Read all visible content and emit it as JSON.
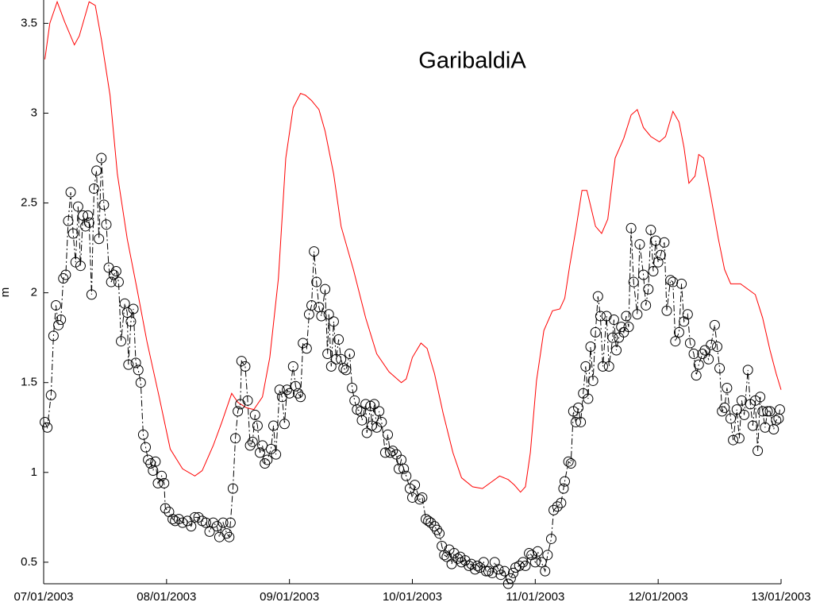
{
  "chart_data": {
    "type": "line",
    "title": "GaribaldiA",
    "y_label": "m",
    "xlim": [
      0,
      6
    ],
    "ylim": [
      0.38,
      3.63
    ],
    "xticks": [
      {
        "value": 0,
        "label": "07/01/2003"
      },
      {
        "value": 1,
        "label": "08/01/2003"
      },
      {
        "value": 2,
        "label": "09/01/2003"
      },
      {
        "value": 3,
        "label": "10/01/2003"
      },
      {
        "value": 4,
        "label": "11/01/2003"
      },
      {
        "value": 5,
        "label": "12/01/2003"
      },
      {
        "value": 6,
        "label": "13/01/2003"
      }
    ],
    "yticks": [
      0.5,
      1,
      1.5,
      2,
      2.5,
      3,
      3.5
    ],
    "grid": false,
    "series": [
      {
        "color": "#ff0000",
        "linestyle": "solid",
        "marker": "none",
        "x": [
          0.01,
          0.05,
          0.11,
          0.17,
          0.25,
          0.29,
          0.37,
          0.42,
          0.47,
          0.54,
          0.6,
          0.68,
          0.76,
          0.84,
          0.94,
          1.03,
          1.13,
          1.23,
          1.29,
          1.38,
          1.45,
          1.53,
          1.58,
          1.65,
          1.71,
          1.78,
          1.84,
          1.91,
          1.97,
          2.03,
          2.09,
          2.13,
          2.18,
          2.24,
          2.29,
          2.36,
          2.42,
          2.52,
          2.62,
          2.71,
          2.81,
          2.91,
          2.95,
          3.0,
          3.07,
          3.12,
          3.18,
          3.25,
          3.33,
          3.4,
          3.49,
          3.57,
          3.65,
          3.71,
          3.78,
          3.83,
          3.88,
          3.92,
          3.96,
          4.01,
          4.07,
          4.14,
          4.2,
          4.24,
          4.28,
          4.33,
          4.38,
          4.42,
          4.49,
          4.54,
          4.59,
          4.65,
          4.72,
          4.78,
          4.83,
          4.88,
          4.94,
          5.01,
          5.06,
          5.12,
          5.17,
          5.21,
          5.25,
          5.3,
          5.33,
          5.37,
          5.43,
          5.49,
          5.54,
          5.59,
          5.67,
          5.73,
          5.79,
          5.85,
          5.91,
          5.96,
          6.0
        ],
        "values": [
          3.3,
          3.5,
          3.62,
          3.51,
          3.38,
          3.43,
          3.62,
          3.6,
          3.41,
          3.1,
          2.66,
          2.3,
          2.02,
          1.73,
          1.42,
          1.13,
          1.02,
          0.98,
          1.01,
          1.15,
          1.28,
          1.44,
          1.39,
          1.36,
          1.35,
          1.42,
          1.64,
          2.08,
          2.75,
          3.03,
          3.11,
          3.1,
          3.07,
          3.02,
          2.9,
          2.66,
          2.37,
          2.13,
          1.86,
          1.66,
          1.56,
          1.5,
          1.52,
          1.64,
          1.72,
          1.69,
          1.55,
          1.33,
          1.11,
          0.97,
          0.92,
          0.91,
          0.95,
          0.98,
          0.96,
          0.93,
          0.89,
          0.92,
          1.11,
          1.51,
          1.79,
          1.9,
          1.91,
          1.97,
          2.15,
          2.35,
          2.57,
          2.57,
          2.37,
          2.33,
          2.41,
          2.75,
          2.86,
          2.99,
          3.02,
          2.92,
          2.87,
          2.84,
          2.87,
          3.01,
          2.95,
          2.81,
          2.61,
          2.65,
          2.77,
          2.75,
          2.53,
          2.3,
          2.13,
          2.05,
          2.05,
          2.02,
          1.99,
          1.86,
          1.68,
          1.55,
          1.46
        ]
      },
      {
        "color": "#000000",
        "linestyle": "dashdot",
        "marker": "circle",
        "x": [
          0.01,
          0.03,
          0.06,
          0.08,
          0.1,
          0.12,
          0.14,
          0.16,
          0.18,
          0.2,
          0.22,
          0.24,
          0.26,
          0.28,
          0.3,
          0.32,
          0.34,
          0.36,
          0.37,
          0.39,
          0.41,
          0.43,
          0.45,
          0.47,
          0.49,
          0.51,
          0.53,
          0.55,
          0.57,
          0.59,
          0.61,
          0.63,
          0.66,
          0.68,
          0.69,
          0.71,
          0.73,
          0.75,
          0.77,
          0.79,
          0.81,
          0.83,
          0.85,
          0.87,
          0.89,
          0.91,
          0.93,
          0.96,
          0.98,
          0.99,
          1.02,
          1.05,
          1.07,
          1.1,
          1.13,
          1.17,
          1.2,
          1.23,
          1.26,
          1.29,
          1.32,
          1.35,
          1.38,
          1.41,
          1.43,
          1.46,
          1.49,
          1.51,
          1.52,
          1.54,
          1.56,
          1.58,
          1.6,
          1.61,
          1.64,
          1.66,
          1.68,
          1.7,
          1.72,
          1.74,
          1.76,
          1.78,
          1.8,
          1.82,
          1.85,
          1.87,
          1.89,
          1.92,
          1.94,
          1.96,
          1.98,
          2.0,
          2.03,
          2.05,
          2.07,
          2.09,
          2.11,
          2.14,
          2.16,
          2.18,
          2.2,
          2.22,
          2.24,
          2.26,
          2.29,
          2.31,
          2.32,
          2.34,
          2.36,
          2.38,
          2.4,
          2.42,
          2.44,
          2.46,
          2.49,
          2.51,
          2.53,
          2.55,
          2.58,
          2.59,
          2.62,
          2.63,
          2.66,
          2.67,
          2.69,
          2.71,
          2.73,
          2.75,
          2.78,
          2.8,
          2.82,
          2.84,
          2.87,
          2.89,
          2.91,
          2.93,
          2.95,
          2.98,
          3.0,
          3.02,
          3.06,
          3.08,
          3.11,
          3.13,
          3.15,
          3.18,
          3.2,
          3.22,
          3.24,
          3.26,
          3.28,
          3.3,
          3.32,
          3.34,
          3.37,
          3.39,
          3.4,
          3.43,
          3.46,
          3.48,
          3.51,
          3.53,
          3.55,
          3.58,
          3.6,
          3.62,
          3.65,
          3.67,
          3.7,
          3.72,
          3.75,
          3.78,
          3.8,
          3.82,
          3.84,
          3.87,
          3.9,
          3.92,
          3.95,
          3.97,
          4.0,
          4.02,
          4.05,
          4.08,
          4.1,
          4.13,
          4.15,
          4.18,
          4.21,
          4.23,
          4.24,
          4.27,
          4.29,
          4.31,
          4.33,
          4.35,
          4.37,
          4.39,
          4.41,
          4.43,
          4.45,
          4.47,
          4.49,
          4.51,
          4.53,
          4.55,
          4.58,
          4.6,
          4.63,
          4.64,
          4.66,
          4.68,
          4.7,
          4.72,
          4.74,
          4.76,
          4.78,
          4.8,
          4.83,
          4.85,
          4.88,
          4.9,
          4.92,
          4.94,
          4.96,
          4.98,
          5.0,
          5.02,
          5.05,
          5.07,
          5.1,
          5.12,
          5.14,
          5.17,
          5.19,
          5.21,
          5.24,
          5.26,
          5.29,
          5.31,
          5.33,
          5.36,
          5.38,
          5.41,
          5.43,
          5.46,
          5.48,
          5.5,
          5.52,
          5.54,
          5.56,
          5.59,
          5.61,
          5.64,
          5.66,
          5.68,
          5.7,
          5.73,
          5.75,
          5.77,
          5.79,
          5.81,
          5.83,
          5.85,
          5.87,
          5.89,
          5.91,
          5.94,
          5.96,
          5.98,
          5.99
        ],
        "values": [
          1.28,
          1.25,
          1.43,
          1.76,
          1.93,
          1.82,
          1.85,
          2.08,
          2.1,
          2.4,
          2.56,
          2.33,
          2.17,
          2.48,
          2.15,
          2.43,
          2.37,
          2.43,
          2.39,
          1.99,
          2.58,
          2.68,
          2.3,
          2.75,
          2.49,
          2.38,
          2.14,
          2.06,
          2.1,
          2.12,
          2.06,
          1.73,
          1.94,
          1.89,
          1.6,
          1.84,
          1.91,
          1.61,
          1.57,
          1.5,
          1.21,
          1.14,
          1.07,
          1.05,
          1.01,
          1.06,
          0.94,
          0.98,
          0.94,
          0.8,
          0.78,
          0.74,
          0.73,
          0.74,
          0.72,
          0.73,
          0.7,
          0.75,
          0.75,
          0.73,
          0.72,
          0.67,
          0.72,
          0.7,
          0.64,
          0.72,
          0.66,
          0.64,
          0.72,
          0.91,
          1.19,
          1.34,
          1.38,
          1.62,
          1.59,
          1.4,
          1.15,
          1.17,
          1.32,
          1.26,
          1.11,
          1.15,
          1.05,
          1.07,
          1.13,
          1.26,
          1.1,
          1.46,
          1.42,
          1.27,
          1.46,
          1.44,
          1.59,
          1.48,
          1.44,
          1.42,
          1.72,
          1.69,
          1.88,
          1.93,
          2.23,
          2.06,
          1.92,
          1.87,
          2.02,
          1.66,
          1.88,
          1.59,
          1.84,
          1.63,
          1.74,
          1.63,
          1.58,
          1.57,
          1.66,
          1.47,
          1.4,
          1.35,
          1.34,
          1.29,
          1.38,
          1.22,
          1.37,
          1.26,
          1.38,
          1.25,
          1.34,
          1.28,
          1.11,
          1.21,
          1.11,
          1.12,
          1.1,
          1.02,
          1.07,
          1.02,
          0.98,
          0.91,
          0.86,
          0.93,
          0.85,
          0.86,
          0.74,
          0.73,
          0.72,
          0.7,
          0.68,
          0.66,
          0.59,
          0.54,
          0.53,
          0.57,
          0.49,
          0.55,
          0.52,
          0.53,
          0.5,
          0.51,
          0.48,
          0.49,
          0.46,
          0.48,
          0.47,
          0.5,
          0.45,
          0.45,
          0.44,
          0.5,
          0.46,
          0.43,
          0.45,
          0.38,
          0.41,
          0.44,
          0.47,
          0.48,
          0.5,
          0.48,
          0.55,
          0.54,
          0.5,
          0.56,
          0.5,
          0.45,
          0.54,
          0.63,
          0.79,
          0.81,
          0.83,
          0.91,
          0.95,
          1.06,
          1.05,
          1.34,
          1.28,
          1.36,
          1.28,
          1.44,
          1.59,
          1.41,
          1.7,
          1.51,
          1.78,
          1.98,
          1.87,
          1.59,
          1.87,
          1.59,
          1.75,
          1.85,
          1.68,
          1.75,
          1.81,
          1.78,
          1.87,
          1.81,
          2.36,
          2.06,
          1.88,
          2.27,
          2.1,
          1.93,
          2.02,
          2.35,
          2.12,
          2.29,
          2.17,
          2.21,
          2.28,
          1.9,
          2.07,
          2.06,
          1.73,
          1.78,
          2.05,
          1.84,
          1.88,
          1.72,
          1.66,
          1.54,
          1.6,
          1.66,
          1.68,
          1.63,
          1.71,
          1.82,
          1.7,
          1.58,
          1.34,
          1.36,
          1.47,
          1.3,
          1.18,
          1.35,
          1.19,
          1.4,
          1.32,
          1.57,
          1.38,
          1.26,
          1.4,
          1.12,
          1.42,
          1.34,
          1.25,
          1.34,
          1.34,
          1.24,
          1.29,
          1.3,
          1.35
        ]
      }
    ]
  }
}
